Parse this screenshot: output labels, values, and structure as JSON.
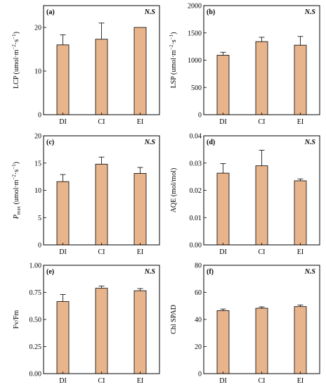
{
  "colors": {
    "bar_fill": "#e8b48b",
    "bar_stroke": "#000000",
    "axis": "#000000"
  },
  "chart_data": [
    {
      "type": "bar",
      "panel": "(a)",
      "significance": "N.S",
      "categories": [
        "DI",
        "CI",
        "EI"
      ],
      "values": [
        16.0,
        17.3,
        20.0
      ],
      "errors": [
        2.3,
        3.7,
        0.0
      ],
      "ylabel_parts": [
        {
          "t": "LCP (umol·m"
        },
        {
          "t": "−2",
          "sup": true
        },
        {
          "t": "·s"
        },
        {
          "t": "−1",
          "sup": true
        },
        {
          "t": ")"
        }
      ],
      "ylim": [
        0,
        25
      ],
      "yticks": [
        0,
        10,
        20
      ],
      "ytick_labels": [
        "0",
        "10",
        "20"
      ],
      "grid": false
    },
    {
      "type": "bar",
      "panel": "(b)",
      "significance": "N.S",
      "categories": [
        "DI",
        "CI",
        "EI"
      ],
      "values": [
        1090,
        1340,
        1275
      ],
      "errors": [
        55,
        80,
        160
      ],
      "ylabel_parts": [
        {
          "t": "LSP (umol·m"
        },
        {
          "t": "−2",
          "sup": true
        },
        {
          "t": "·s"
        },
        {
          "t": "−1",
          "sup": true
        },
        {
          "t": ")"
        }
      ],
      "ylim": [
        0,
        2000
      ],
      "yticks": [
        0,
        500,
        1000,
        1500,
        2000
      ],
      "ytick_labels": [
        "0",
        "500",
        "1000",
        "1500",
        "2000"
      ],
      "grid": false
    },
    {
      "type": "bar",
      "panel": "(c)",
      "significance": "N.S",
      "categories": [
        "DI",
        "CI",
        "EI"
      ],
      "values": [
        11.6,
        14.8,
        13.1
      ],
      "errors": [
        1.3,
        1.3,
        1.1
      ],
      "ylabel_parts": [
        {
          "t": "P",
          "it": true
        },
        {
          "t": "max",
          "sub": true
        },
        {
          "t": " (umol·m"
        },
        {
          "t": "−2",
          "sup": true
        },
        {
          "t": "·s"
        },
        {
          "t": "−1",
          "sup": true
        },
        {
          "t": ")"
        }
      ],
      "ylim": [
        0,
        20
      ],
      "yticks": [
        0,
        5,
        10,
        15,
        20
      ],
      "ytick_labels": [
        "0",
        "5",
        "10",
        "15",
        "20"
      ],
      "grid": false
    },
    {
      "type": "bar",
      "panel": "(d)",
      "significance": "N.S",
      "categories": [
        "DI",
        "CI",
        "EI"
      ],
      "values": [
        0.0263,
        0.029,
        0.0235
      ],
      "errors": [
        0.0035,
        0.0057,
        0.0007
      ],
      "ylabel_parts": [
        {
          "t": "AQE (mol/mol)"
        }
      ],
      "ylim": [
        0,
        0.04
      ],
      "yticks": [
        0,
        0.01,
        0.02,
        0.03,
        0.04
      ],
      "ytick_labels": [
        "0.00",
        "0.01",
        "0.02",
        "0.03",
        "0.04"
      ],
      "grid": false
    },
    {
      "type": "bar",
      "panel": "(e)",
      "significance": "N.S",
      "categories": [
        "DI",
        "CI",
        "EI"
      ],
      "values": [
        0.665,
        0.788,
        0.765
      ],
      "errors": [
        0.065,
        0.02,
        0.02
      ],
      "ylabel_parts": [
        {
          "t": "Fv/Fm"
        }
      ],
      "ylim": [
        0,
        1.0
      ],
      "yticks": [
        0,
        0.25,
        0.5,
        0.75,
        1.0
      ],
      "ytick_labels": [
        "0.00",
        "0.25",
        "0.50",
        "0.75",
        "1.00"
      ],
      "grid": false
    },
    {
      "type": "bar",
      "panel": "(f)",
      "significance": "N.S",
      "categories": [
        "DI",
        "CI",
        "EI"
      ],
      "values": [
        46.5,
        48.3,
        49.5
      ],
      "errors": [
        1.2,
        1.0,
        1.2
      ],
      "ylabel_parts": [
        {
          "t": "Chl SPAD"
        }
      ],
      "ylim": [
        0,
        80
      ],
      "yticks": [
        0,
        20,
        40,
        60,
        80
      ],
      "ytick_labels": [
        "0",
        "20",
        "40",
        "60",
        "80"
      ],
      "grid": false
    }
  ]
}
